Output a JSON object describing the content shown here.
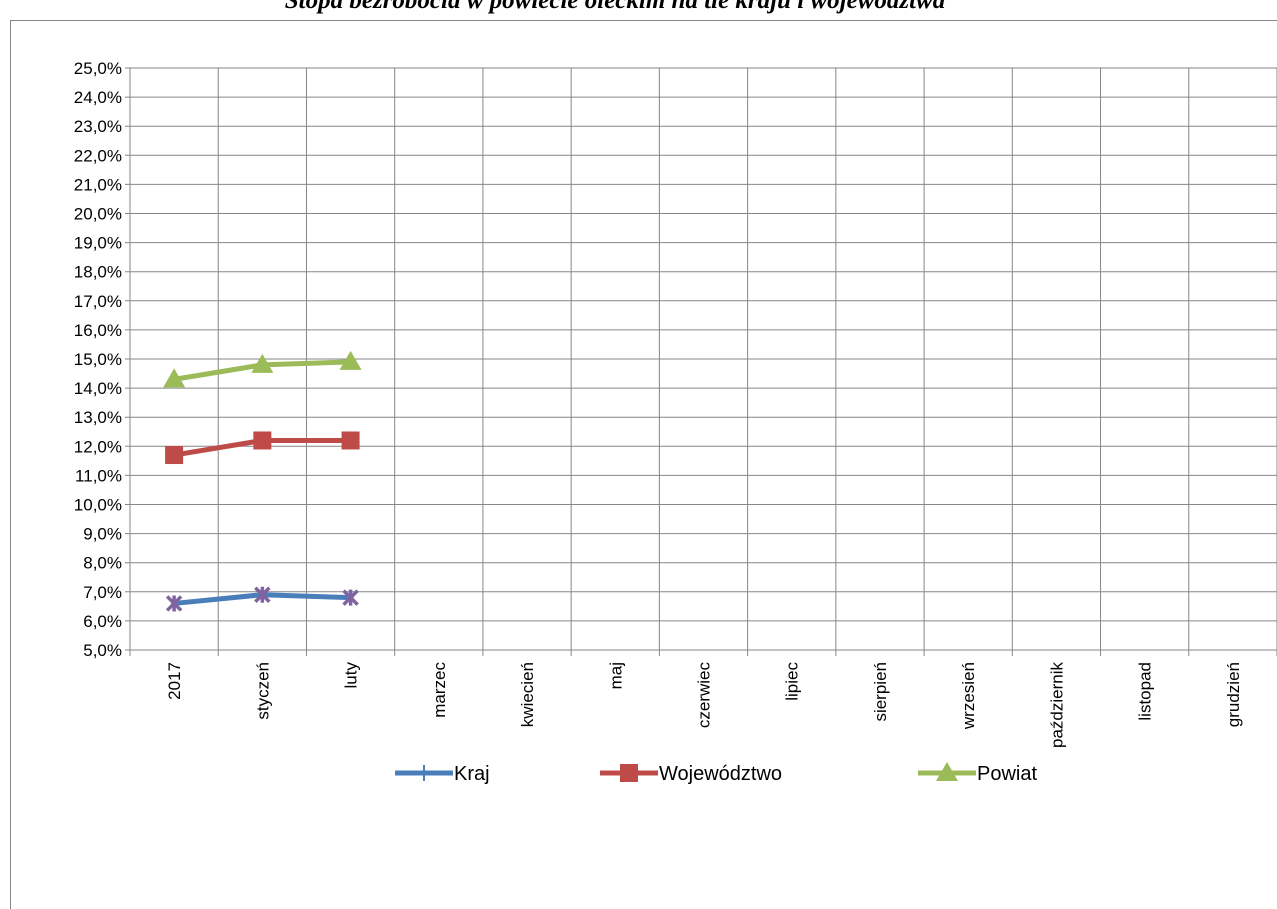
{
  "chart_data": {
    "type": "line",
    "title": "Stopa bezrobocia w powiecie oleckim na tle kraju i województwa",
    "categories": [
      "2017",
      "styczeń",
      "luty",
      "marzec",
      "kwiecień",
      "maj",
      "czerwiec",
      "lipiec",
      "sierpień",
      "wrzesień",
      "październik",
      "listopad",
      "grudzień"
    ],
    "series": [
      {
        "name": "Kraj",
        "color": "#4a7ebb",
        "marker": "x",
        "values": [
          6.6,
          6.9,
          6.8,
          null,
          null,
          null,
          null,
          null,
          null,
          null,
          null,
          null,
          null
        ]
      },
      {
        "name": "Województwo",
        "color": "#be4b48",
        "marker": "square",
        "values": [
          11.7,
          12.2,
          12.2,
          null,
          null,
          null,
          null,
          null,
          null,
          null,
          null,
          null,
          null
        ]
      },
      {
        "name": "Powiat",
        "color": "#9bbb59",
        "marker": "triangle",
        "values": [
          14.3,
          14.8,
          14.9,
          null,
          null,
          null,
          null,
          null,
          null,
          null,
          null,
          null,
          null
        ]
      }
    ],
    "ylim": [
      5,
      25
    ],
    "yticks": [
      {
        "value": 5,
        "label": "5,0%"
      },
      {
        "value": 6,
        "label": "6,0%"
      },
      {
        "value": 7,
        "label": "7,0%"
      },
      {
        "value": 8,
        "label": "8,0%"
      },
      {
        "value": 9,
        "label": "9,0%"
      },
      {
        "value": 10,
        "label": "10,0%"
      },
      {
        "value": 11,
        "label": "11,0%"
      },
      {
        "value": 12,
        "label": "12,0%"
      },
      {
        "value": 13,
        "label": "13,0%"
      },
      {
        "value": 14,
        "label": "14,0%"
      },
      {
        "value": 15,
        "label": "15,0%"
      },
      {
        "value": 16,
        "label": "16,0%"
      },
      {
        "value": 17,
        "label": "17,0%"
      },
      {
        "value": 18,
        "label": "18,0%"
      },
      {
        "value": 19,
        "label": "19,0%"
      },
      {
        "value": 20,
        "label": "20,0%"
      },
      {
        "value": 21,
        "label": "21,0%"
      },
      {
        "value": 22,
        "label": "22,0%"
      },
      {
        "value": 23,
        "label": "23,0%"
      },
      {
        "value": 24,
        "label": "24,0%"
      },
      {
        "value": 25,
        "label": "25,0%"
      }
    ],
    "grid": true,
    "legend": "bottom"
  }
}
